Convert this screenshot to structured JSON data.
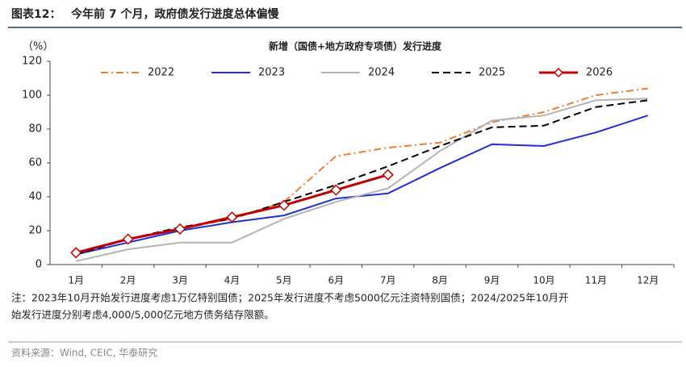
{
  "header": {
    "label": "图表12：",
    "title": "今年前 7 个月，政府债发行进度总体偏慢"
  },
  "chart_data": {
    "type": "line",
    "title": "新增（国债+地方政府专项债）发行进度",
    "y_label": "（%）",
    "categories": [
      "1月",
      "2月",
      "3月",
      "4月",
      "5月",
      "6月",
      "7月",
      "8月",
      "9月",
      "10月",
      "11月",
      "12月"
    ],
    "ylim": [
      0,
      120
    ],
    "yticks": [
      0,
      20,
      40,
      60,
      80,
      100,
      120
    ],
    "legend": "top",
    "series": [
      {
        "name": "2022",
        "color": "#ed7d31",
        "dash": "dashdot",
        "values": [
          7,
          15,
          21,
          27,
          37,
          64,
          69,
          72,
          84,
          90,
          100,
          104
        ]
      },
      {
        "name": "2023",
        "color": "#1f2fd0",
        "dash": "solid",
        "values": [
          6,
          13,
          20,
          25,
          29,
          39,
          42,
          57,
          71,
          70,
          78,
          88
        ]
      },
      {
        "name": "2024",
        "color": "#b4b4b4",
        "dash": "solid",
        "values": [
          2,
          9,
          13,
          13,
          27,
          37,
          45,
          67,
          85,
          88,
          97,
          98
        ]
      },
      {
        "name": "2025",
        "color": "#000000",
        "dash": "dashed",
        "values": [
          6,
          15,
          22,
          27,
          37,
          47,
          58,
          70,
          81,
          82,
          93,
          97
        ]
      },
      {
        "name": "2026",
        "color": "#c00000",
        "dash": "solid",
        "marker": "diamond",
        "values": [
          7,
          15,
          21,
          28,
          35,
          44,
          53,
          null,
          null,
          null,
          null,
          null
        ]
      }
    ]
  },
  "note": [
    "注：2023年10月开始发行进度考虑1万亿特别国债；2025年发行进度不考虑5000亿元注资特别国债；2024/2025年10月开",
    "始发行进度分别考虑4,000/5,000亿元地方债务结存限额。"
  ],
  "source": "资料来源：Wind, CEIC, 华泰研究"
}
